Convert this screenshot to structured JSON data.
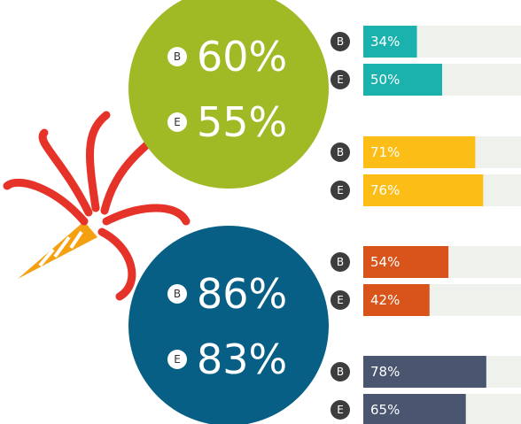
{
  "chart_data": {
    "type": "bar",
    "xlim": [
      0,
      100
    ],
    "circles": [
      {
        "color": "#9fba24",
        "names": [
          "B",
          "E"
        ],
        "values": [
          60,
          55
        ],
        "value_labels": [
          "60%",
          "55%"
        ]
      },
      {
        "color": "#075f86",
        "names": [
          "B",
          "E"
        ],
        "values": [
          86,
          83
        ],
        "value_labels": [
          "86%",
          "83%"
        ]
      }
    ],
    "groups": [
      {
        "color": "#1bb2ad",
        "names": [
          "B",
          "E"
        ],
        "values": [
          34,
          50
        ],
        "value_labels": [
          "34%",
          "50%"
        ]
      },
      {
        "color": "#fbbd16",
        "names": [
          "B",
          "E"
        ],
        "values": [
          71,
          76
        ],
        "value_labels": [
          "71%",
          "76%"
        ]
      },
      {
        "color": "#d9541a",
        "names": [
          "B",
          "E"
        ],
        "values": [
          54,
          42
        ],
        "value_labels": [
          "54%",
          "42%"
        ]
      },
      {
        "color": "#4a5670",
        "names": [
          "B",
          "E"
        ],
        "values": [
          78,
          65
        ],
        "value_labels": [
          "78%",
          "65%"
        ]
      }
    ]
  }
}
